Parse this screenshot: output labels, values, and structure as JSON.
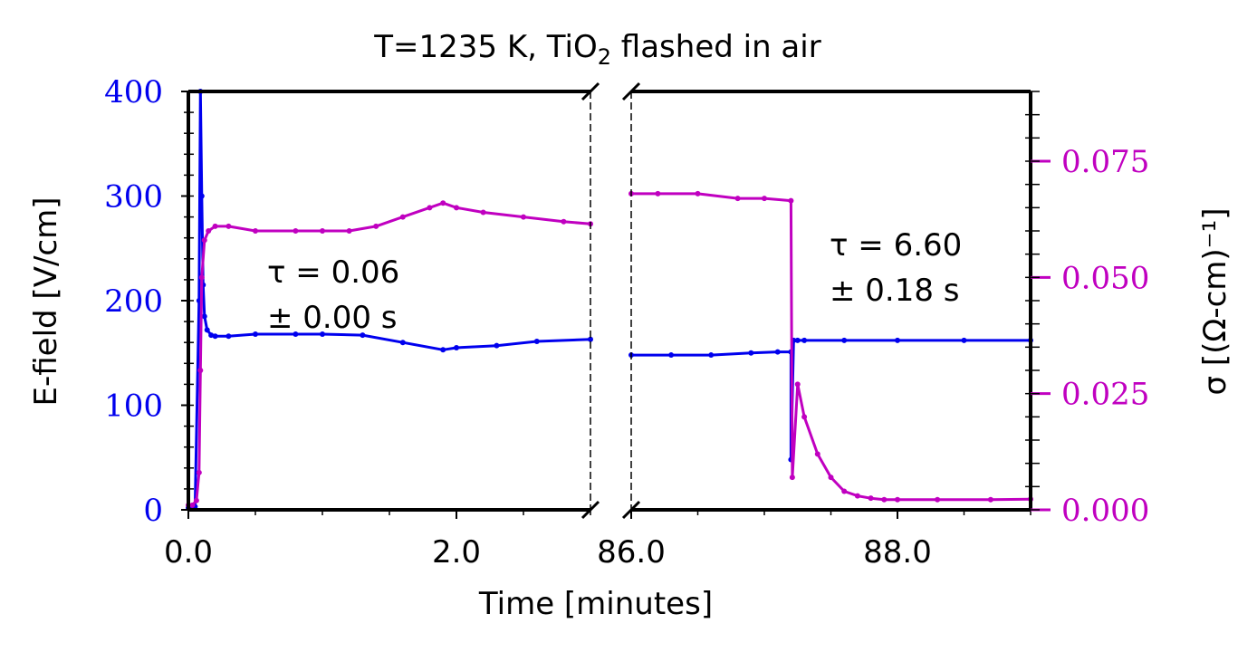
{
  "chart_data": {
    "type": "line",
    "title_parts": {
      "pre": "T=1235 K, TiO",
      "sub": "2",
      "post": " flashed in air"
    },
    "xlabel": "Time [minutes]",
    "ylabel_left": "E-field [V/cm]",
    "ylabel_right": "σ [(Ω-cm)⁻¹]",
    "colors": {
      "efield": "#0000ee",
      "sigma": "#c000c0",
      "axes": "#000000"
    },
    "left_panel": {
      "xlim": [
        0.0,
        3.0
      ],
      "xticks": [
        0.0,
        2.0
      ],
      "xtick_labels": [
        "0.0",
        "2.0"
      ],
      "annotation": [
        "τ = 0.06",
        "± 0.00 s"
      ]
    },
    "right_panel": {
      "xlim": [
        86.0,
        89.0
      ],
      "xticks": [
        86.0,
        88.0
      ],
      "xtick_labels": [
        "86.0",
        "88.0"
      ],
      "annotation": [
        "τ = 6.60",
        "± 0.18 s"
      ]
    },
    "ylim_left": [
      0,
      400
    ],
    "yticks_left": [
      0,
      100,
      200,
      300,
      400
    ],
    "ytick_labels_left": [
      "0",
      "100",
      "200",
      "300",
      "400"
    ],
    "ylim_right": [
      0.0,
      0.09
    ],
    "yticks_right": [
      0.0,
      0.025,
      0.05,
      0.075
    ],
    "ytick_labels_right": [
      "0.000",
      "0.025",
      "0.050",
      "0.075"
    ],
    "series": [
      {
        "key": "efield",
        "axis": "left",
        "left_x": [
          0.0,
          0.02,
          0.05,
          0.08,
          0.09,
          0.1,
          0.11,
          0.12,
          0.14,
          0.17,
          0.2,
          0.3,
          0.5,
          0.8,
          1.0,
          1.3,
          1.6,
          1.9,
          2.0,
          2.3,
          2.6,
          3.0
        ],
        "left_y": [
          2,
          2,
          3,
          200,
          400,
          300,
          215,
          185,
          172,
          167,
          166,
          166,
          168,
          168,
          168,
          167,
          160,
          153,
          155,
          157,
          161,
          163
        ],
        "right_x": [
          86.0,
          86.3,
          86.6,
          86.9,
          87.1,
          87.2,
          87.2,
          87.22,
          87.25,
          87.3,
          87.6,
          88.0,
          88.5,
          89.0
        ],
        "right_y": [
          148,
          148,
          148,
          150,
          151,
          151,
          48,
          162,
          162,
          162,
          162,
          162,
          162,
          162
        ]
      },
      {
        "key": "sigma",
        "axis": "right",
        "left_x": [
          0.0,
          0.03,
          0.06,
          0.08,
          0.09,
          0.1,
          0.12,
          0.15,
          0.2,
          0.3,
          0.5,
          0.8,
          1.0,
          1.2,
          1.4,
          1.6,
          1.8,
          1.9,
          2.0,
          2.2,
          2.5,
          2.8,
          3.0
        ],
        "left_y": [
          0.001,
          0.001,
          0.002,
          0.008,
          0.03,
          0.05,
          0.058,
          0.06,
          0.061,
          0.061,
          0.06,
          0.06,
          0.06,
          0.06,
          0.061,
          0.063,
          0.065,
          0.066,
          0.065,
          0.064,
          0.063,
          0.062,
          0.0615
        ],
        "right_x": [
          86.0,
          86.2,
          86.5,
          86.8,
          87.0,
          87.2,
          87.21,
          87.25,
          87.3,
          87.4,
          87.5,
          87.6,
          87.7,
          87.8,
          87.9,
          88.0,
          88.3,
          88.7,
          89.0
        ],
        "right_y": [
          0.068,
          0.068,
          0.068,
          0.067,
          0.067,
          0.0665,
          0.007,
          0.027,
          0.02,
          0.012,
          0.007,
          0.004,
          0.003,
          0.0025,
          0.0022,
          0.0022,
          0.0022,
          0.0022,
          0.0023
        ]
      }
    ]
  }
}
